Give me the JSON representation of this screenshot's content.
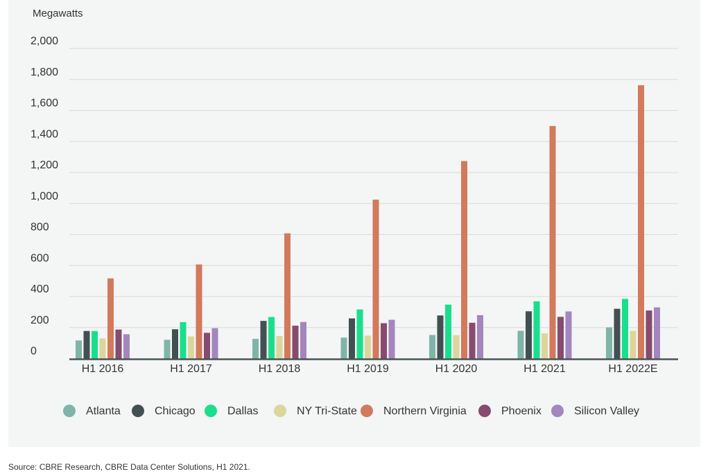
{
  "chart_data": {
    "type": "bar",
    "ylabel": "Megawatts",
    "ylim": [
      0,
      2000
    ],
    "yticks": [
      "0",
      "200",
      "400",
      "600",
      "800",
      "1,000",
      "1,200",
      "1,400",
      "1,600",
      "1,800",
      "2,000"
    ],
    "grid": true,
    "legend": "bottom",
    "categories": [
      "H1 2016",
      "H1 2017",
      "H1 2018",
      "H1 2019",
      "H1 2020",
      "H1 2021",
      "H1 2022E"
    ],
    "series": [
      {
        "name": "Atlanta",
        "color": "#7fb5a8",
        "values": [
          117,
          121,
          127,
          135,
          152,
          179,
          201
        ]
      },
      {
        "name": "Chicago",
        "color": "#425052",
        "values": [
          178,
          189,
          243,
          259,
          278,
          305,
          321
        ]
      },
      {
        "name": "Dallas",
        "color": "#19df8c",
        "values": [
          177,
          235,
          268,
          317,
          348,
          369,
          385
        ]
      },
      {
        "name": "NY Tri-State",
        "color": "#dcd69c",
        "values": [
          130,
          143,
          145,
          148,
          151,
          163,
          179
        ]
      },
      {
        "name": "Northern Virginia",
        "color": "#d27a5c",
        "values": [
          517,
          607,
          808,
          1025,
          1274,
          1500,
          1763
        ]
      },
      {
        "name": "Phoenix",
        "color": "#864b6e",
        "values": [
          187,
          166,
          212,
          228,
          231,
          269,
          310
        ]
      },
      {
        "name": "Silicon Valley",
        "color": "#a386be",
        "values": [
          157,
          196,
          236,
          250,
          280,
          304,
          330
        ]
      }
    ]
  },
  "source": "Source: CBRE Research, CBRE Data Center Solutions, H1 2021."
}
